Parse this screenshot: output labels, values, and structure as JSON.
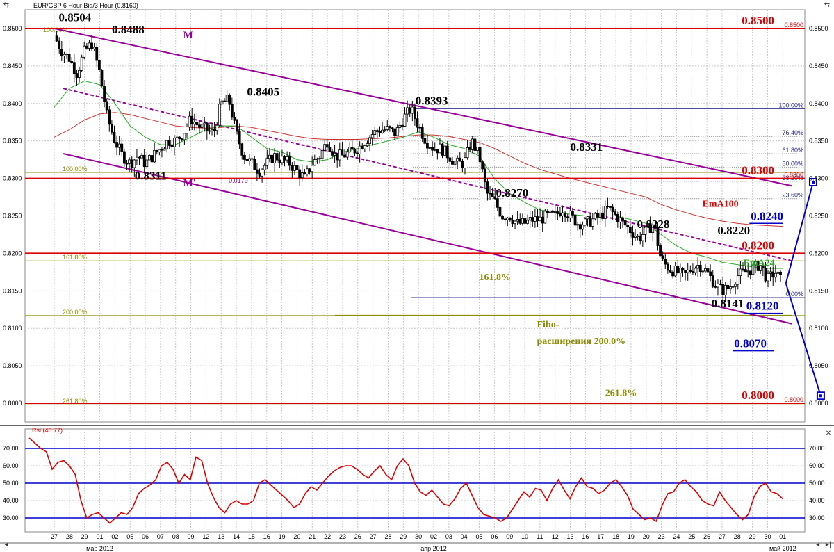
{
  "window": {
    "title": "EUR/GBP 6 Hour Bid/3 Hour (0.8160)",
    "rsi_label": "Rsi (40.77)"
  },
  "colors": {
    "price_level": "#dd0000",
    "channel": "#990099",
    "fibo": "#8c8c00",
    "target": "#0000cc",
    "ema_short": "#22aa22",
    "ema_long": "#cc3333",
    "rsi": "#dd0000",
    "rsi_level": "#0000cc",
    "candle_up": "#ffffff",
    "candle_down": "#000000"
  },
  "chart_data": [
    {
      "type": "candlestick",
      "title": "EUR/GBP 6 Hour Bid/3 Hour (0.8160)",
      "xlabel": "",
      "ylabel": "",
      "ylim": [
        0.7975,
        0.8525
      ],
      "grid": true,
      "y_ticks": [
        "0.8500",
        "0.8450",
        "0.8400",
        "0.8350",
        "0.8300",
        "0.8250",
        "0.8200",
        "0.8150",
        "0.8100",
        "0.8050",
        "0.8000"
      ],
      "x_ticks": [
        "27",
        "28",
        "29",
        "01",
        "02",
        "05",
        "06",
        "07",
        "08",
        "09",
        "12",
        "13",
        "14",
        "15",
        "16",
        "19",
        "20",
        "21",
        "22",
        "23",
        "26",
        "27",
        "28",
        "29",
        "30",
        "02",
        "03",
        "04",
        "05",
        "06",
        "09",
        "10",
        "11",
        "12",
        "13",
        "16",
        "17",
        "18",
        "19",
        "20",
        "23",
        "24",
        "25",
        "26",
        "27",
        "28",
        "29",
        "30",
        "01"
      ],
      "month_labels": [
        {
          "label": "мар 2012",
          "tick_index": 3
        },
        {
          "label": "апр 2012",
          "tick_index": 25
        },
        {
          "label": "май 2012",
          "tick_index": 48
        }
      ],
      "price_path": [
        [
          0,
          0.849
        ],
        [
          0.5,
          0.847
        ],
        [
          1,
          0.846
        ],
        [
          1.5,
          0.844
        ],
        [
          2,
          0.847
        ],
        [
          2.5,
          0.848
        ],
        [
          3,
          0.844
        ],
        [
          3.5,
          0.838
        ],
        [
          4,
          0.835
        ],
        [
          4.5,
          0.833
        ],
        [
          5,
          0.832
        ],
        [
          5.5,
          0.833
        ],
        [
          6,
          0.832
        ],
        [
          6.5,
          0.833
        ],
        [
          7,
          0.834
        ],
        [
          7.5,
          0.835
        ],
        [
          8,
          0.835
        ],
        [
          8.5,
          0.836
        ],
        [
          9,
          0.838
        ],
        [
          9.5,
          0.837
        ],
        [
          10,
          0.8365
        ],
        [
          10.5,
          0.836
        ],
        [
          11,
          0.84
        ],
        [
          11.5,
          0.8405
        ],
        [
          12,
          0.836
        ],
        [
          12.5,
          0.833
        ],
        [
          13,
          0.832
        ],
        [
          13.5,
          0.831
        ],
        [
          14,
          0.832
        ],
        [
          14.5,
          0.833
        ],
        [
          15,
          0.8325
        ],
        [
          15.5,
          0.832
        ],
        [
          16,
          0.831
        ],
        [
          16.5,
          0.83
        ],
        [
          17,
          0.832
        ],
        [
          17.5,
          0.833
        ],
        [
          18,
          0.835
        ],
        [
          18.5,
          0.833
        ],
        [
          19,
          0.833
        ],
        [
          19.5,
          0.8335
        ],
        [
          20,
          0.834
        ],
        [
          20.5,
          0.835
        ],
        [
          21,
          0.836
        ],
        [
          21.5,
          0.8365
        ],
        [
          22,
          0.8365
        ],
        [
          22.5,
          0.836
        ],
        [
          23,
          0.838
        ],
        [
          23.5,
          0.8393
        ],
        [
          24,
          0.837
        ],
        [
          24.5,
          0.835
        ],
        [
          25,
          0.834
        ],
        [
          25.5,
          0.834
        ],
        [
          26,
          0.833
        ],
        [
          26.5,
          0.832
        ],
        [
          27,
          0.832
        ],
        [
          27.5,
          0.835
        ],
        [
          28,
          0.833
        ],
        [
          28.5,
          0.828
        ],
        [
          29,
          0.827
        ],
        [
          29.5,
          0.825
        ],
        [
          30,
          0.825
        ],
        [
          30.5,
          0.824
        ],
        [
          31,
          0.824
        ],
        [
          31.5,
          0.8245
        ],
        [
          32,
          0.8245
        ],
        [
          32.5,
          0.825
        ],
        [
          33,
          0.825
        ],
        [
          33.5,
          0.826
        ],
        [
          34,
          0.825
        ],
        [
          34.5,
          0.824
        ],
        [
          35,
          0.824
        ],
        [
          35.5,
          0.8245
        ],
        [
          36,
          0.825
        ],
        [
          36.5,
          0.826
        ],
        [
          37,
          0.825
        ],
        [
          37.5,
          0.824
        ],
        [
          38,
          0.823
        ],
        [
          38.5,
          0.822
        ],
        [
          39,
          0.823
        ],
        [
          39.5,
          0.824
        ],
        [
          40,
          0.819
        ],
        [
          40.5,
          0.818
        ],
        [
          41,
          0.8175
        ],
        [
          41.5,
          0.817
        ],
        [
          42,
          0.818
        ],
        [
          42.5,
          0.8185
        ],
        [
          43,
          0.8175
        ],
        [
          43.5,
          0.816
        ],
        [
          44,
          0.815
        ],
        [
          44.5,
          0.8155
        ],
        [
          45,
          0.817
        ],
        [
          45.5,
          0.8175
        ],
        [
          46,
          0.818
        ],
        [
          46.5,
          0.8185
        ],
        [
          47,
          0.8165
        ],
        [
          47.5,
          0.8175
        ],
        [
          48,
          0.816
        ]
      ],
      "ema24_path": [
        [
          0,
          0.8395
        ],
        [
          1,
          0.842
        ],
        [
          2,
          0.843
        ],
        [
          3,
          0.8425
        ],
        [
          4,
          0.84
        ],
        [
          5,
          0.837
        ],
        [
          6,
          0.8355
        ],
        [
          7,
          0.8345
        ],
        [
          8,
          0.8345
        ],
        [
          9,
          0.8355
        ],
        [
          10,
          0.8365
        ],
        [
          11,
          0.837
        ],
        [
          12,
          0.837
        ],
        [
          13,
          0.8355
        ],
        [
          14,
          0.834
        ],
        [
          15,
          0.8335
        ],
        [
          16,
          0.8325
        ],
        [
          17,
          0.8322
        ],
        [
          18,
          0.8325
        ],
        [
          19,
          0.8335
        ],
        [
          20,
          0.834
        ],
        [
          21,
          0.8345
        ],
        [
          22,
          0.835
        ],
        [
          23,
          0.8355
        ],
        [
          24,
          0.8362
        ],
        [
          25,
          0.8355
        ],
        [
          26,
          0.8345
        ],
        [
          27,
          0.834
        ],
        [
          28,
          0.833
        ],
        [
          29,
          0.83
        ],
        [
          30,
          0.828
        ],
        [
          31,
          0.8268
        ],
        [
          32,
          0.8258
        ],
        [
          33,
          0.8255
        ],
        [
          34,
          0.8252
        ],
        [
          35,
          0.825
        ],
        [
          36,
          0.825
        ],
        [
          37,
          0.825
        ],
        [
          38,
          0.8245
        ],
        [
          39,
          0.824
        ],
        [
          40,
          0.8225
        ],
        [
          41,
          0.821
        ],
        [
          42,
          0.82
        ],
        [
          43,
          0.8195
        ],
        [
          44,
          0.8188
        ],
        [
          45,
          0.8185
        ],
        [
          46,
          0.8182
        ],
        [
          47,
          0.818
        ],
        [
          48,
          0.818
        ]
      ],
      "ema100_path": [
        [
          0,
          0.8355
        ],
        [
          1,
          0.8365
        ],
        [
          2,
          0.8378
        ],
        [
          3,
          0.8386
        ],
        [
          4,
          0.8388
        ],
        [
          5,
          0.8385
        ],
        [
          6,
          0.838
        ],
        [
          7,
          0.8375
        ],
        [
          8,
          0.837
        ],
        [
          9,
          0.8368
        ],
        [
          10,
          0.8367
        ],
        [
          11,
          0.8368
        ],
        [
          12,
          0.837
        ],
        [
          13,
          0.8368
        ],
        [
          14,
          0.8364
        ],
        [
          15,
          0.836
        ],
        [
          16,
          0.8356
        ],
        [
          17,
          0.8353
        ],
        [
          18,
          0.8352
        ],
        [
          19,
          0.8352
        ],
        [
          20,
          0.8352
        ],
        [
          21,
          0.8353
        ],
        [
          22,
          0.8354
        ],
        [
          23,
          0.8356
        ],
        [
          24,
          0.8358
        ],
        [
          25,
          0.8358
        ],
        [
          26,
          0.8356
        ],
        [
          27,
          0.8352
        ],
        [
          28,
          0.8348
        ],
        [
          29,
          0.834
        ],
        [
          30,
          0.833
        ],
        [
          31,
          0.832
        ],
        [
          32,
          0.8312
        ],
        [
          33,
          0.8306
        ],
        [
          34,
          0.83
        ],
        [
          35,
          0.8295
        ],
        [
          36,
          0.829
        ],
        [
          37,
          0.8285
        ],
        [
          38,
          0.828
        ],
        [
          39,
          0.8275
        ],
        [
          40,
          0.8265
        ],
        [
          41,
          0.8258
        ],
        [
          42,
          0.8252
        ],
        [
          43,
          0.8247
        ],
        [
          44,
          0.8243
        ],
        [
          45,
          0.824
        ],
        [
          46,
          0.8238
        ],
        [
          47,
          0.8237
        ],
        [
          48,
          0.8236
        ]
      ],
      "price_levels": [
        "0.8500",
        "0.8300",
        "0.8200",
        "0.8000"
      ],
      "price_level_values": [
        0.85,
        0.83,
        0.82,
        0.8
      ],
      "axis_tags": [
        "0.8500",
        "0.8300",
        "0.8000"
      ],
      "axis_tag_values": [
        0.85,
        0.83,
        0.8
      ],
      "swing_labels": [
        {
          "text": "0.8504",
          "x": 0.3,
          "y": 0.8504
        },
        {
          "text": "0.8488",
          "x": 3.8,
          "y": 0.8488
        },
        {
          "text": "0.8405",
          "x": 12.7,
          "y": 0.8405
        },
        {
          "text": "0.8393",
          "x": 23.8,
          "y": 0.8393
        },
        {
          "text": "0.8311",
          "x": 5.3,
          "y": 0.8311
        },
        {
          "text": "0.8270",
          "x": 29.1,
          "y": 0.827
        },
        {
          "text": "0.8331",
          "x": 34.0,
          "y": 0.8331
        },
        {
          "text": "0.8228",
          "x": 38.4,
          "y": 0.8228
        },
        {
          "text": "0.8220",
          "x": 43.7,
          "y": 0.822
        },
        {
          "text": "0.8141",
          "x": 43.3,
          "y": 0.8141
        }
      ],
      "channel_labels": [
        "M",
        "M'"
      ],
      "channel_label_points": [
        [
          8.5,
          0.8487
        ],
        [
          8.5,
          0.829
        ]
      ],
      "channel_lines": [
        {
          "from": [
            0.0,
            0.85
          ],
          "to": [
            48.6,
            0.829
          ]
        },
        {
          "from": [
            0.6,
            0.842
          ],
          "to": [
            48.6,
            0.819
          ]
        },
        {
          "from": [
            0.6,
            0.8333
          ],
          "to": [
            48.6,
            0.8106
          ]
        }
      ],
      "channel_mid_label": "0.0170",
      "channel_mid_label_point": [
        11.5,
        0.8294
      ],
      "fibo_left_labels": [
        "100.00%",
        "161.80%",
        "200.00%",
        "261.80%"
      ],
      "fibo_left_values": [
        0.8308,
        0.819,
        0.8117,
        0.7998
      ],
      "fibo_left_top_label": "100.00%",
      "fibo_left_top_value": 0.8497,
      "fibo_ext_line": {
        "from": [
          18.5,
          0.8117
        ],
        "to": [
          48.6,
          0.8117
        ]
      },
      "fibo_text": [
        "161.8%",
        "Fibo-",
        "расширения 200.0%",
        "261.8%"
      ],
      "fibo_text_points": [
        [
          28.0,
          0.8164
        ],
        [
          31.8,
          0.8101
        ],
        [
          31.8,
          0.8079
        ],
        [
          36.3,
          0.801
        ]
      ],
      "fibo_right_labels": [
        "100.00%",
        "76.40%",
        "61.80%",
        "50.00%",
        "38.20%",
        "23.60%",
        "0.00%"
      ],
      "fibo_right_values": [
        0.8393,
        0.8356,
        0.8333,
        0.8315,
        0.8296,
        0.8273,
        0.8141
      ],
      "fibo_right_lines_from_x": 23.5,
      "ema_labels": [
        "EmA100",
        "EmA24"
      ],
      "ema_label_points": [
        [
          42.7,
          0.8262
        ],
        [
          45.4,
          0.8183
        ]
      ],
      "target_labels": [
        "0.8240",
        "0.8120",
        "0.8070"
      ],
      "target_values": [
        0.824,
        0.812,
        0.807
      ],
      "target_lines_x": [
        [
          45.8,
          48.0
        ],
        [
          45.5,
          48.0
        ],
        [
          44.7,
          47.4
        ]
      ],
      "target_path": [
        [
          48.2,
          0.816
        ],
        [
          50.0,
          0.8295
        ]
      ],
      "target_path_down": [
        [
          48.2,
          0.816
        ],
        [
          50.5,
          0.801
        ]
      ],
      "target_markers": [
        [
          50.0,
          0.8295
        ],
        [
          50.5,
          0.801
        ]
      ]
    },
    {
      "type": "line",
      "title": "Rsi (40.77)",
      "xlabel": "",
      "ylabel": "",
      "ylim": [
        22,
        78
      ],
      "y_ticks": [
        "70.00",
        "60.00",
        "50.00",
        "40.00",
        "30.00"
      ],
      "levels": [
        70,
        50,
        30
      ],
      "series": [
        {
          "values": [
            76,
            73,
            70,
            68,
            58,
            62,
            63,
            60,
            55,
            40,
            30,
            32,
            33,
            30,
            27,
            30,
            33,
            32,
            36,
            44,
            47,
            49,
            52,
            60,
            62,
            58,
            50,
            55,
            52,
            65,
            63,
            50,
            42,
            36,
            33,
            38,
            40,
            38,
            38,
            40,
            50,
            52,
            49,
            46,
            43,
            40,
            36,
            38,
            44,
            48,
            46,
            50,
            54,
            57,
            59,
            60,
            60,
            58,
            55,
            53,
            57,
            60,
            55,
            52,
            60,
            64,
            60,
            50,
            45,
            43,
            46,
            42,
            38,
            37,
            41,
            47,
            50,
            43,
            36,
            32,
            31,
            30,
            28,
            30,
            35,
            40,
            45,
            42,
            47,
            46,
            40,
            47,
            52,
            46,
            41,
            48,
            53,
            48,
            47,
            44,
            46,
            50,
            52,
            48,
            43,
            35,
            32,
            29,
            30,
            28,
            37,
            44,
            45,
            50,
            52,
            48,
            45,
            40,
            38,
            37,
            45,
            40,
            36,
            32,
            29,
            32,
            42,
            48,
            50,
            45,
            44,
            41
          ]
        }
      ]
    }
  ]
}
